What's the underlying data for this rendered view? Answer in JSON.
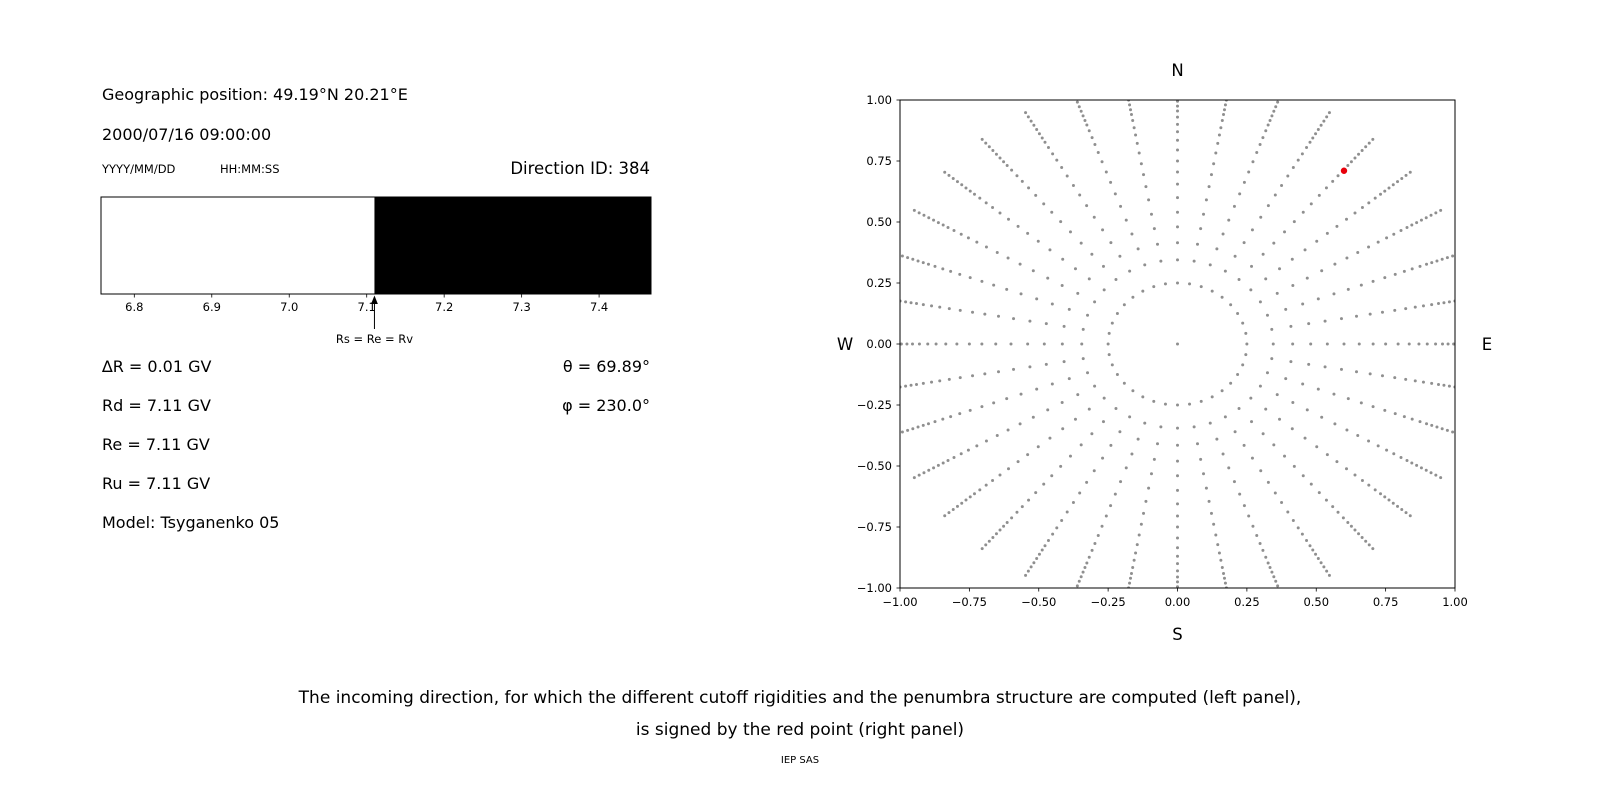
{
  "left_panel": {
    "geo_position": "Geographic position: 49.19°N 20.21°E",
    "datetime": "2000/07/16 09:00:00",
    "date_format_label": "YYYY/MM/DD",
    "time_format_label": "HH:MM:SS",
    "direction_id_label": "Direction ID: 384",
    "rows": [
      {
        "left": "∆R = 0.01 GV",
        "right": "θ = 69.89°"
      },
      {
        "left": "Rd = 7.11 GV",
        "right": "φ = 230.0°"
      },
      {
        "left": "Re = 7.11 GV",
        "right": ""
      },
      {
        "left": "Ru = 7.11 GV",
        "right": ""
      },
      {
        "left": "Model: Tsyganenko 05",
        "right": ""
      }
    ]
  },
  "caption": {
    "line1": "The incoming direction, for which the different cutoff rigidities and the penumbra structure are computed (left panel),",
    "line2": "is signed by the red point (right panel)",
    "credit": "IEP SAS"
  },
  "chart_data": [
    {
      "type": "bar",
      "title": "penumbra structure",
      "x_range": [
        6.757,
        7.467
      ],
      "x_ticks": [
        6.8,
        6.9,
        7.0,
        7.1,
        7.2,
        7.3,
        7.4
      ],
      "tick_decimals": 1,
      "segments": [
        {
          "from": 6.757,
          "to": 7.11,
          "color": "#ffffff"
        },
        {
          "from": 7.11,
          "to": 7.467,
          "color": "#000000"
        }
      ],
      "border_color": "#000000",
      "marker": {
        "x": 7.11,
        "label": "Rs = Re = Rv"
      }
    },
    {
      "type": "scatter",
      "compass_labels": {
        "top": "N",
        "bottom": "S",
        "left": "W",
        "right": "E"
      },
      "xlim": [
        -1.0,
        1.0
      ],
      "ylim": [
        -1.0,
        1.0
      ],
      "x_ticks": [
        -1.0,
        -0.75,
        -0.5,
        -0.25,
        0.0,
        0.25,
        0.5,
        0.75,
        1.0
      ],
      "y_ticks": [
        -1.0,
        -0.75,
        -0.5,
        -0.25,
        0.0,
        0.25,
        0.5,
        0.75,
        1.0
      ],
      "tick_decimals": 2,
      "grid": false,
      "dot_color": "#8f8f8f",
      "dot_radius_px": 1.5,
      "point_pattern": {
        "description": "radial spokes of the direction grid; innermost ring at r=0.25, points bunch toward the outer ends, clipped at the axes box",
        "azimuth_count": 36,
        "azimuth_step_deg": 10,
        "radii": [
          0.25,
          0.345,
          0.415,
          0.48,
          0.54,
          0.6,
          0.655,
          0.705,
          0.75,
          0.795,
          0.835,
          0.87,
          0.9,
          0.93,
          0.955,
          0.975,
          0.995,
          1.015,
          1.035,
          1.055,
          1.075,
          1.095
        ],
        "center_dot": true
      },
      "red_point": {
        "x": 0.6,
        "y": 0.71,
        "color": "#e8000b",
        "radius_px": 3.2
      }
    }
  ]
}
